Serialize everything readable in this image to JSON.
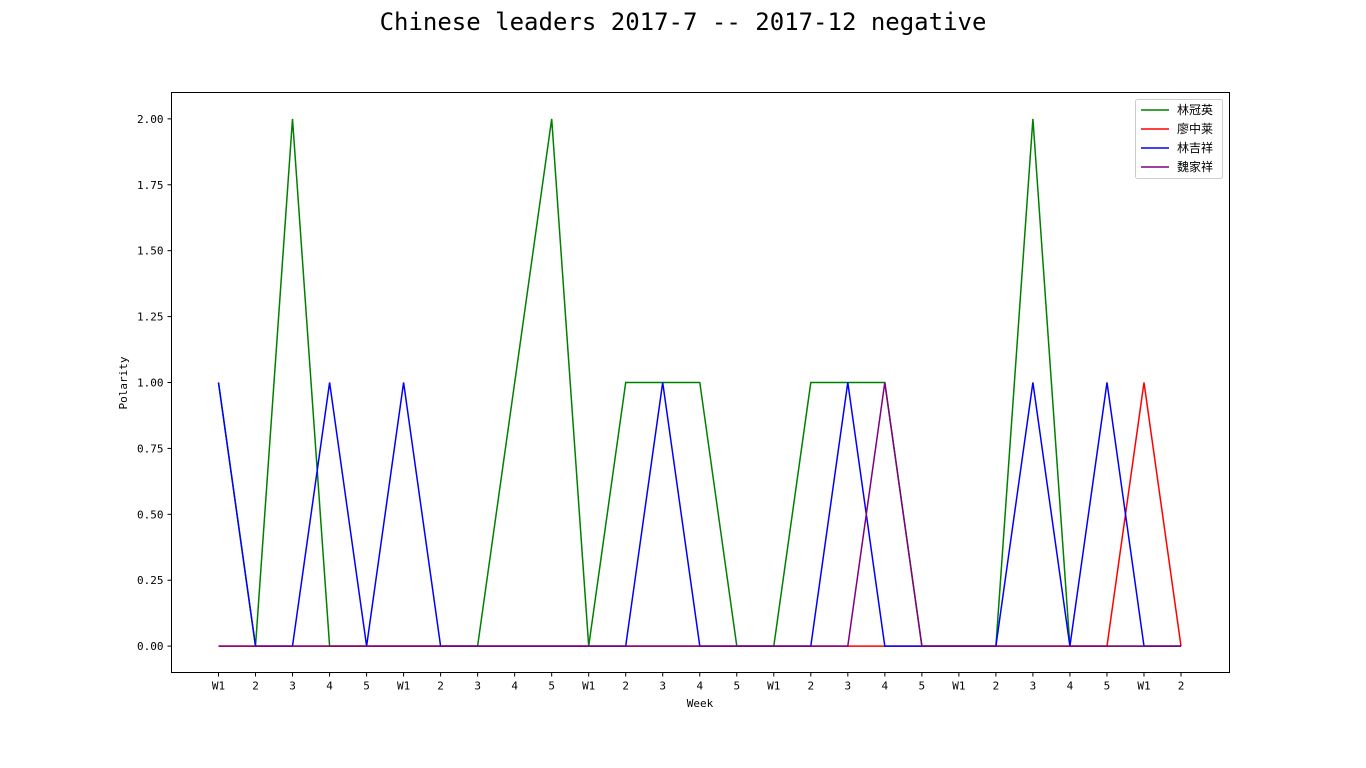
{
  "chart_data": {
    "type": "line",
    "title": "Chinese leaders 2017-7 -- 2017-12 negative",
    "xlabel": "Week",
    "ylabel": "Polarity",
    "ylim": [
      -0.1,
      2.1
    ],
    "yticks": [
      "0.00",
      "0.25",
      "0.50",
      "0.75",
      "1.00",
      "1.25",
      "1.50",
      "1.75",
      "2.00"
    ],
    "categories": [
      "W1",
      "2",
      "3",
      "4",
      "5",
      "W1",
      "2",
      "3",
      "4",
      "5",
      "W1",
      "2",
      "3",
      "4",
      "5",
      "W1",
      "2",
      "3",
      "4",
      "5",
      "W1",
      "2",
      "3",
      "4",
      "5",
      "W1",
      "2"
    ],
    "grid": false,
    "legend_position": "top-right",
    "series": [
      {
        "name": "林冠英",
        "color": "#008000",
        "values": [
          1,
          0,
          2,
          0,
          0,
          0,
          0,
          0,
          1,
          2,
          0,
          1,
          1,
          1,
          0,
          0,
          1,
          1,
          1,
          0,
          0,
          0,
          2,
          0,
          0,
          0,
          0
        ]
      },
      {
        "name": "廖中莱",
        "color": "#ff0000",
        "values": [
          0,
          0,
          0,
          0,
          0,
          0,
          0,
          0,
          0,
          0,
          0,
          0,
          0,
          0,
          0,
          0,
          0,
          0,
          0,
          0,
          0,
          0,
          0,
          0,
          0,
          1,
          0
        ]
      },
      {
        "name": "林吉祥",
        "color": "#0000ff",
        "values": [
          1,
          0,
          0,
          1,
          0,
          1,
          0,
          0,
          0,
          0,
          0,
          0,
          1,
          0,
          0,
          0,
          0,
          1,
          0,
          0,
          0,
          0,
          1,
          0,
          1,
          0,
          0
        ]
      },
      {
        "name": "魏家祥",
        "color": "#800080",
        "values": [
          0,
          0,
          0,
          0,
          0,
          0,
          0,
          0,
          0,
          0,
          0,
          0,
          0,
          0,
          0,
          0,
          0,
          0,
          1,
          0,
          0,
          0,
          0,
          0,
          0,
          0,
          0
        ]
      }
    ]
  }
}
